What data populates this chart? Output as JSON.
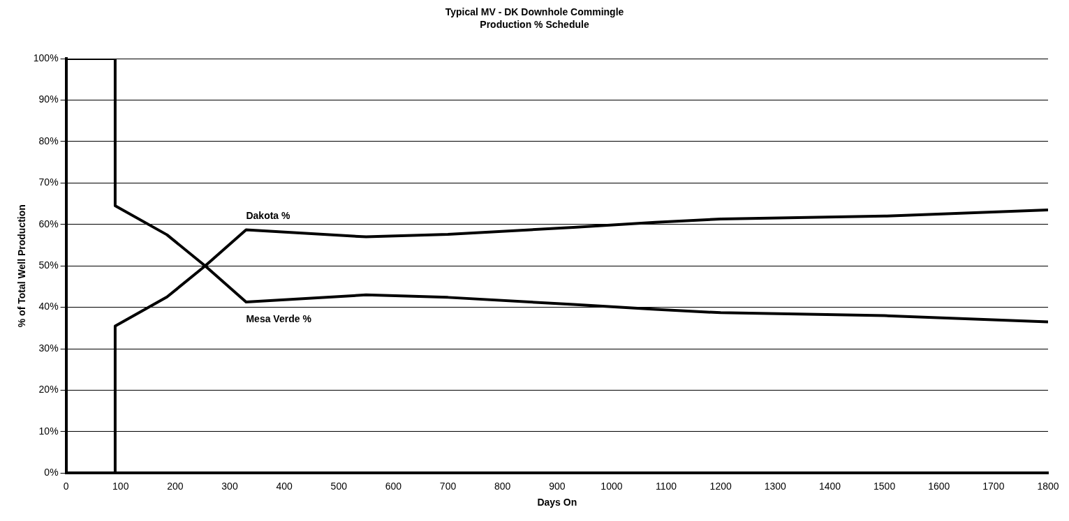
{
  "chart_data": {
    "type": "line",
    "title": "Typical MV - DK Downhole Commingle\nProduction % Schedule",
    "xlabel": "Days On",
    "ylabel": "% of Total Well Production",
    "series": [
      {
        "name": "Dakota %",
        "color": "#000000",
        "x": [
          0,
          90,
          90,
          185,
          255,
          330,
          550,
          700,
          930,
          1080,
          1200,
          1500,
          1800
        ],
        "values": [
          0,
          0,
          35.5,
          42.5,
          50,
          58.7,
          57,
          57.6,
          59.3,
          60.5,
          61.3,
          62,
          63.5
        ]
      },
      {
        "name": "Mesa Verde %",
        "color": "#000000",
        "x": [
          0,
          90,
          90,
          185,
          255,
          330,
          550,
          700,
          930,
          1080,
          1200,
          1500,
          1800
        ],
        "values": [
          100,
          100,
          64.5,
          57.5,
          50,
          41.3,
          43,
          42.4,
          40.7,
          39.5,
          38.7,
          38,
          36.5
        ]
      }
    ],
    "xlim": [
      0,
      1800
    ],
    "xticks": [
      0,
      100,
      200,
      300,
      400,
      500,
      600,
      700,
      800,
      900,
      1000,
      1100,
      1200,
      1300,
      1400,
      1500,
      1600,
      1700,
      1800
    ],
    "ylim": [
      0,
      100
    ],
    "yticks": [
      {
        "value": 0,
        "label": "0%"
      },
      {
        "value": 10,
        "label": "10%"
      },
      {
        "value": 20,
        "label": "20%"
      },
      {
        "value": 30,
        "label": "30%"
      },
      {
        "value": 40,
        "label": "40%"
      },
      {
        "value": 50,
        "label": "50%"
      },
      {
        "value": 60,
        "label": "60%"
      },
      {
        "value": 70,
        "label": "70%"
      },
      {
        "value": 80,
        "label": "80%"
      },
      {
        "value": 90,
        "label": "90%"
      },
      {
        "value": 100,
        "label": "100%"
      }
    ],
    "grid": "y",
    "legend": false,
    "marker": "none",
    "line_style": "solid"
  }
}
